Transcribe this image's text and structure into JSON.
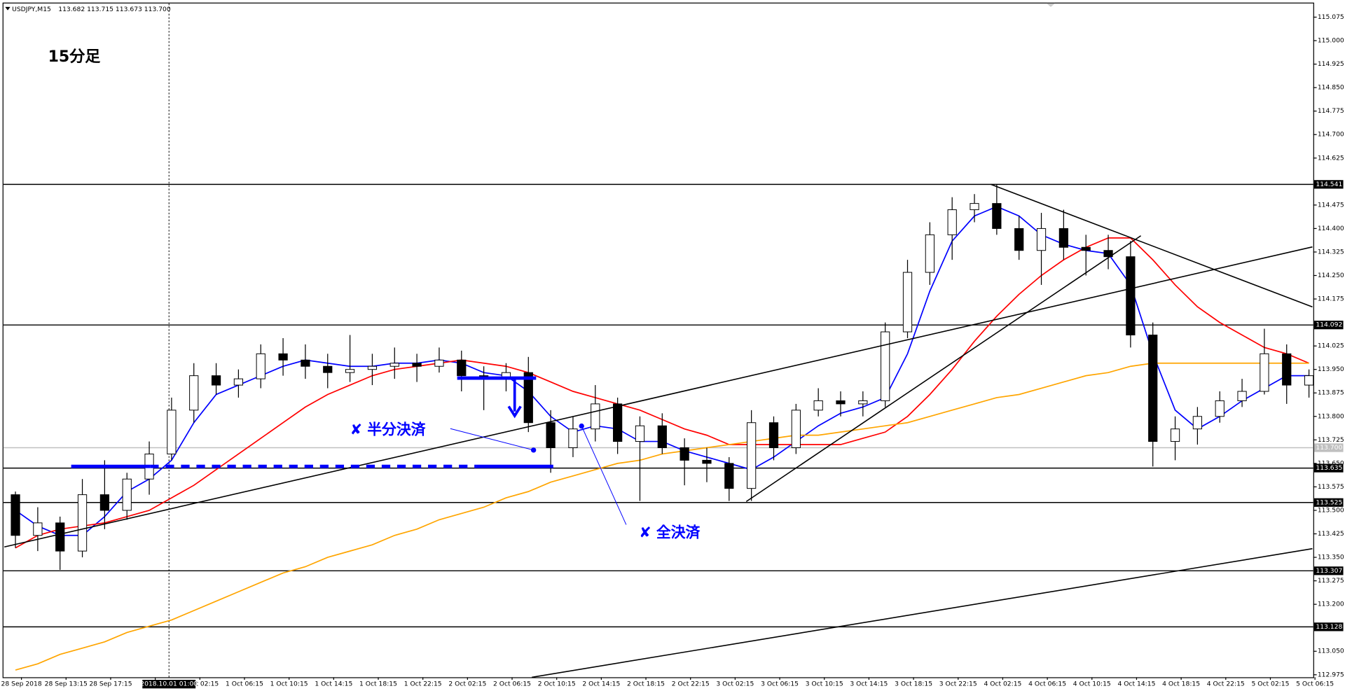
{
  "chart_data": {
    "type": "candlestick",
    "title": "USDJPY,M15",
    "ohlc_text": "113.682 113.715 113.673 113.700",
    "crosshair_label": "2018.10.01 01:00",
    "annotations": [
      "15分足",
      "✘ 半分決済",
      "✘ 全決済"
    ],
    "x_labels": [
      "28 Sep 2018",
      "28 Sep 13:15",
      "28 Sep 17:15",
      null,
      "1 Oct 02:15",
      "1 Oct 06:15",
      "1 Oct 10:15",
      "1 Oct 14:15",
      "1 Oct 18:15",
      "1 Oct 22:15",
      "2 Oct 02:15",
      "2 Oct 06:15",
      "2 Oct 10:15",
      "2 Oct 14:15",
      "2 Oct 18:15",
      "2 Oct 22:15",
      "3 Oct 02:15",
      "3 Oct 06:15",
      "3 Oct 10:15",
      "3 Oct 14:15",
      "3 Oct 18:15",
      "3 Oct 22:15",
      "4 Oct 02:15",
      "4 Oct 06:15",
      "4 Oct 10:15",
      "4 Oct 14:15",
      "4 Oct 18:15",
      "4 Oct 22:15",
      "5 Oct 02:15",
      "5 Oct 06:15"
    ],
    "open": [
      113.55,
      113.42,
      113.46,
      113.37,
      113.55,
      113.5,
      113.6,
      113.68,
      113.82,
      113.93,
      113.9,
      113.92,
      114.0,
      113.98,
      113.96,
      113.94,
      113.95,
      113.96,
      113.97,
      113.96,
      113.98,
      113.93,
      113.92,
      113.94,
      113.78,
      113.7,
      113.76,
      113.84,
      113.72,
      113.77,
      113.7,
      113.66,
      113.65,
      113.57,
      113.78,
      113.7,
      113.82,
      113.85,
      113.84,
      113.85,
      114.07,
      114.26,
      114.38,
      114.46,
      114.48,
      114.4,
      114.33,
      114.4,
      114.34,
      114.33,
      114.31,
      114.06,
      113.72,
      113.76,
      113.8,
      113.85,
      113.88,
      114.0,
      113.9
    ],
    "high": [
      113.56,
      113.51,
      113.48,
      113.6,
      113.66,
      113.62,
      113.72,
      113.86,
      113.97,
      113.97,
      113.95,
      114.03,
      114.05,
      114.03,
      114.0,
      114.06,
      114.0,
      114.02,
      114.0,
      114.02,
      114.01,
      113.96,
      113.97,
      113.99,
      113.82,
      113.8,
      113.9,
      113.86,
      113.8,
      113.81,
      113.73,
      113.7,
      113.67,
      113.82,
      113.8,
      113.84,
      113.89,
      113.88,
      113.88,
      114.1,
      114.3,
      114.42,
      114.5,
      114.51,
      114.541,
      114.44,
      114.45,
      114.46,
      114.38,
      114.38,
      114.36,
      114.1,
      113.8,
      113.83,
      113.88,
      113.92,
      114.08,
      114.03,
      113.95
    ],
    "low": [
      113.38,
      113.37,
      113.31,
      113.35,
      113.44,
      113.47,
      113.55,
      113.66,
      113.78,
      113.87,
      113.86,
      113.89,
      113.93,
      113.92,
      113.89,
      113.91,
      113.9,
      113.92,
      113.91,
      113.94,
      113.88,
      113.82,
      113.88,
      113.75,
      113.62,
      113.67,
      113.72,
      113.68,
      113.53,
      113.68,
      113.58,
      113.59,
      113.53,
      113.53,
      113.66,
      113.68,
      113.8,
      113.8,
      113.8,
      113.83,
      114.05,
      114.22,
      114.3,
      114.42,
      114.38,
      114.3,
      114.22,
      114.3,
      114.25,
      114.27,
      114.02,
      113.64,
      113.66,
      113.71,
      113.78,
      113.83,
      113.87,
      113.84,
      113.86
    ],
    "close": [
      113.42,
      113.46,
      113.37,
      113.55,
      113.5,
      113.6,
      113.68,
      113.82,
      113.93,
      113.9,
      113.92,
      114.0,
      113.98,
      113.96,
      113.94,
      113.95,
      113.96,
      113.97,
      113.96,
      113.98,
      113.93,
      113.92,
      113.94,
      113.78,
      113.7,
      113.76,
      113.84,
      113.72,
      113.77,
      113.7,
      113.66,
      113.65,
      113.57,
      113.78,
      113.7,
      113.82,
      113.85,
      113.84,
      113.85,
      114.07,
      114.26,
      114.38,
      114.46,
      114.48,
      114.4,
      114.33,
      114.4,
      114.34,
      114.33,
      114.31,
      114.06,
      113.72,
      113.76,
      113.8,
      113.85,
      113.88,
      114.0,
      113.9,
      113.93
    ],
    "moving_averages": [
      {
        "color": "#0000ff",
        "values": [
          113.5,
          113.45,
          113.42,
          113.42,
          113.48,
          113.56,
          113.6,
          113.66,
          113.78,
          113.87,
          113.9,
          113.93,
          113.96,
          113.98,
          113.97,
          113.96,
          113.96,
          113.97,
          113.97,
          113.98,
          113.97,
          113.94,
          113.93,
          113.88,
          113.8,
          113.75,
          113.77,
          113.76,
          113.72,
          113.72,
          113.69,
          113.67,
          113.65,
          113.63,
          113.67,
          113.72,
          113.77,
          113.81,
          113.83,
          113.86,
          114.0,
          114.2,
          114.36,
          114.44,
          114.47,
          114.44,
          114.38,
          114.35,
          114.33,
          114.32,
          114.22,
          114.0,
          113.82,
          113.76,
          113.8,
          113.85,
          113.89,
          113.93,
          113.93
        ]
      },
      {
        "color": "#ff0000",
        "values": [
          113.38,
          113.42,
          113.44,
          113.45,
          113.46,
          113.48,
          113.5,
          113.54,
          113.58,
          113.63,
          113.68,
          113.73,
          113.78,
          113.83,
          113.87,
          113.9,
          113.93,
          113.95,
          113.96,
          113.97,
          113.98,
          113.97,
          113.96,
          113.94,
          113.91,
          113.88,
          113.86,
          113.84,
          113.82,
          113.79,
          113.76,
          113.74,
          113.71,
          113.71,
          113.71,
          113.71,
          113.71,
          113.71,
          113.73,
          113.75,
          113.8,
          113.87,
          113.95,
          114.04,
          114.12,
          114.19,
          114.25,
          114.3,
          114.34,
          114.37,
          114.37,
          114.3,
          114.22,
          114.15,
          114.1,
          114.06,
          114.02,
          114.0,
          113.97
        ]
      },
      {
        "color": "#ffa500",
        "values": [
          112.99,
          113.01,
          113.04,
          113.06,
          113.08,
          113.11,
          113.13,
          113.15,
          113.18,
          113.21,
          113.24,
          113.27,
          113.3,
          113.32,
          113.35,
          113.37,
          113.39,
          113.42,
          113.44,
          113.47,
          113.49,
          113.51,
          113.54,
          113.56,
          113.59,
          113.61,
          113.63,
          113.65,
          113.66,
          113.68,
          113.69,
          113.7,
          113.71,
          113.72,
          113.73,
          113.74,
          113.74,
          113.75,
          113.76,
          113.77,
          113.78,
          113.8,
          113.82,
          113.84,
          113.86,
          113.87,
          113.89,
          113.91,
          113.93,
          113.94,
          113.96,
          113.97,
          113.97,
          113.97,
          113.97,
          113.97,
          113.97,
          113.97,
          113.97
        ]
      }
    ],
    "up_color": "#ffffff",
    "down_color": "#000000",
    "levels": [
      {
        "value": 114.541,
        "label": "114.541",
        "color": "#000000"
      },
      {
        "value": 114.092,
        "label": "114.092",
        "color": "#000000"
      },
      {
        "value": 113.7,
        "label": "113.700",
        "color": "#c0c0c0"
      },
      {
        "value": 113.635,
        "label": "113.635",
        "color": "#000000"
      },
      {
        "value": 113.525,
        "label": "113.525",
        "color": "#000000"
      },
      {
        "value": 113.307,
        "label": "113.307",
        "color": "#000000"
      },
      {
        "value": 113.128,
        "label": "113.128",
        "color": "#000000"
      }
    ],
    "ylim": [
      112.967,
      115.116
    ],
    "yticks": [
      {
        "value": 112.975,
        "label": "112.975"
      },
      {
        "value": 113.05,
        "label": "113.050"
      },
      {
        "value": 113.2,
        "label": "113.200"
      },
      {
        "value": 113.275,
        "label": "113.275"
      },
      {
        "value": 113.35,
        "label": "113.350"
      },
      {
        "value": 113.425,
        "label": "113.425"
      },
      {
        "value": 113.5,
        "label": "113.500"
      },
      {
        "value": 113.575,
        "label": "113.575"
      },
      {
        "value": 113.65,
        "label": "113.650"
      },
      {
        "value": 113.725,
        "label": "113.725"
      },
      {
        "value": 113.8,
        "label": "113.800"
      },
      {
        "value": 113.875,
        "label": "113.875"
      },
      {
        "value": 113.95,
        "label": "113.950"
      },
      {
        "value": 114.025,
        "label": "114.025"
      },
      {
        "value": 114.175,
        "label": "114.175"
      },
      {
        "value": 114.25,
        "label": "114.250"
      },
      {
        "value": 114.325,
        "label": "114.325"
      },
      {
        "value": 114.4,
        "label": "114.400"
      },
      {
        "value": 114.475,
        "label": "114.475"
      },
      {
        "value": 114.625,
        "label": "114.625"
      },
      {
        "value": 114.7,
        "label": "114.700"
      },
      {
        "value": 114.775,
        "label": "114.775"
      },
      {
        "value": 114.85,
        "label": "114.850"
      },
      {
        "value": 114.925,
        "label": "114.925"
      },
      {
        "value": 115.0,
        "label": "115.000"
      },
      {
        "value": 115.075,
        "label": "115.075"
      }
    ],
    "grid": false
  }
}
